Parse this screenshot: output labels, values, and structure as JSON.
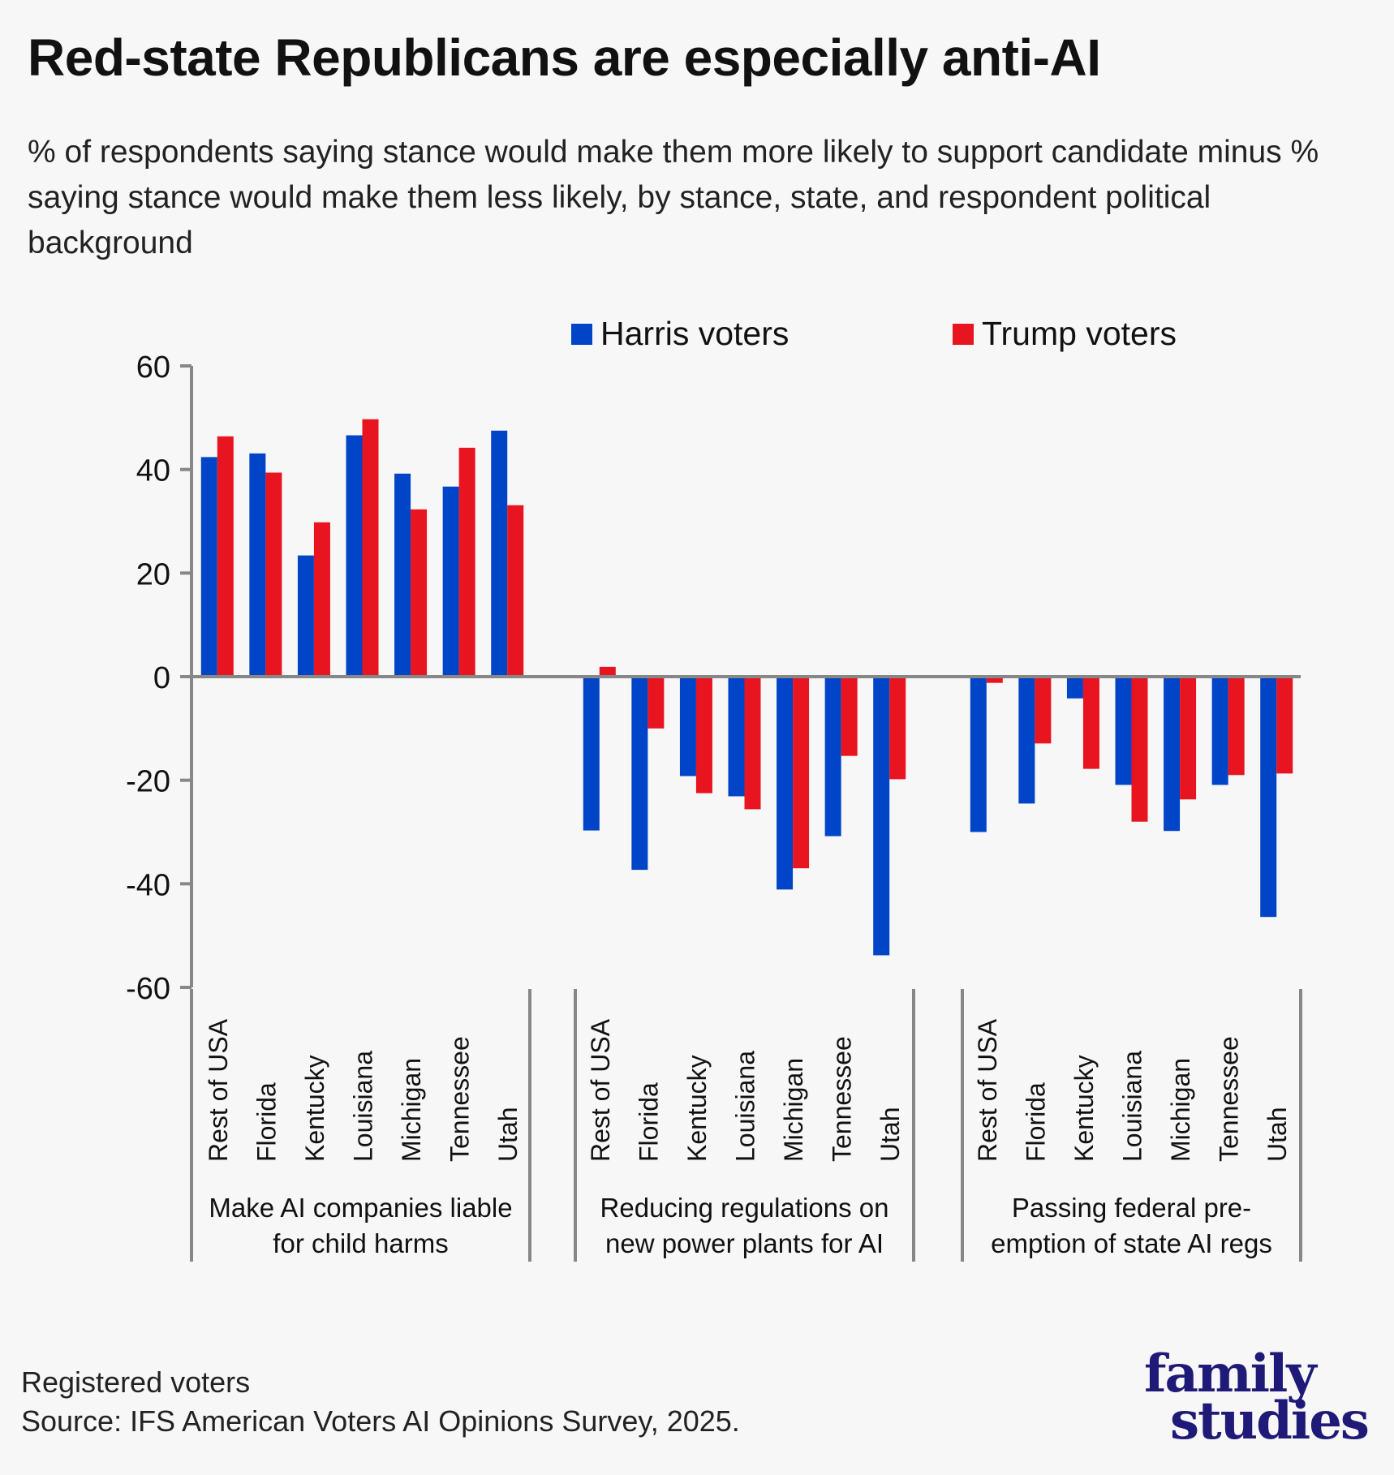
{
  "title": "Red-state Republicans are especially anti-AI",
  "subtitle": "% of respondents saying stance would make them more likely to support candidate minus % saying stance would make them less likely, by stance, state, and respondent political background",
  "footer": {
    "note": "Registered voters",
    "source": "Source: IFS American Voters AI Opinions Survey, 2025."
  },
  "logo": {
    "line1": "family",
    "line2": "studies"
  },
  "colors": {
    "harris": "#0044c8",
    "trump": "#e8141f",
    "axis": "#878787",
    "background": "#f7f7f7",
    "logo": "#1f1a78"
  },
  "chart_data": {
    "type": "bar",
    "title": "Red-state Republicans are especially anti-AI",
    "xlabel": "",
    "ylabel": "",
    "ylim": [
      -60,
      60
    ],
    "yticks": [
      60,
      40,
      20,
      0,
      -20,
      -40,
      -60
    ],
    "ytick_labels": [
      "60",
      "40",
      "20",
      "0",
      "-20",
      "-40",
      "-60"
    ],
    "grid": false,
    "legend_position": "top",
    "legend": [
      "Harris voters",
      "Trump voters"
    ],
    "groups": [
      {
        "label_lines": [
          "Make AI companies liable",
          "for child harms"
        ],
        "categories": [
          "Rest of USA",
          "Florida",
          "Kentucky",
          "Louisiana",
          "Michigan",
          "Tennessee",
          "Utah"
        ],
        "series": [
          {
            "name": "Harris voters",
            "values": [
              42.4,
              43.1,
              23.4,
              46.6,
              39.2,
              36.7,
              47.5
            ]
          },
          {
            "name": "Trump voters",
            "values": [
              46.4,
              39.4,
              29.8,
              49.7,
              32.3,
              44.2,
              33.1
            ]
          }
        ]
      },
      {
        "label_lines": [
          "Reducing regulations on",
          "new power plants for AI"
        ],
        "categories": [
          "Rest of USA",
          "Florida",
          "Kentucky",
          "Louisiana",
          "Michigan",
          "Tennessee",
          "Utah"
        ],
        "series": [
          {
            "name": "Harris voters",
            "values": [
              -29.7,
              -37.3,
              -19.2,
              -23.1,
              -41.1,
              -30.8,
              -53.8
            ]
          },
          {
            "name": "Trump voters",
            "values": [
              1.9,
              -10.0,
              -22.5,
              -25.6,
              -37.0,
              -15.3,
              -19.8
            ]
          }
        ]
      },
      {
        "label_lines": [
          "Passing federal pre-",
          "emption of state AI regs"
        ],
        "categories": [
          "Rest of USA",
          "Florida",
          "Kentucky",
          "Louisiana",
          "Michigan",
          "Tennessee",
          "Utah"
        ],
        "series": [
          {
            "name": "Harris voters",
            "values": [
              -30.0,
              -24.5,
              -4.2,
              -20.9,
              -29.8,
              -20.9,
              -46.4
            ]
          },
          {
            "name": "Trump voters",
            "values": [
              -1.2,
              -12.9,
              -17.8,
              -28.0,
              -23.7,
              -19.0,
              -18.7
            ]
          }
        ]
      }
    ]
  }
}
